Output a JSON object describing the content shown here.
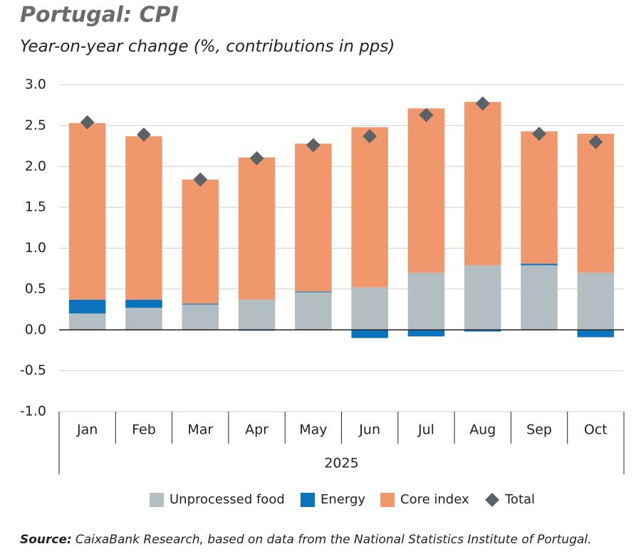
{
  "chart_data": {
    "type": "stacked_bar",
    "title": "Portugal: CPI",
    "subtitle": "Year-on-year change (%, contributions in pps)",
    "categories": [
      "Jan",
      "Feb",
      "Mar",
      "Apr",
      "May",
      "Jun",
      "Jul",
      "Aug",
      "Sep",
      "Oct"
    ],
    "x_group_label": "2025",
    "series": [
      {
        "name": "Unprocessed food",
        "color": "#b3bec2",
        "values": [
          0.2,
          0.27,
          0.31,
          0.37,
          0.46,
          0.52,
          0.7,
          0.79,
          0.79,
          0.7
        ]
      },
      {
        "name": "Energy",
        "color": "#0b72bd",
        "values": [
          0.17,
          0.1,
          0.01,
          -0.01,
          0.01,
          -0.1,
          -0.08,
          -0.02,
          0.02,
          -0.09
        ]
      },
      {
        "name": "Core index",
        "color": "#f1976c",
        "values": [
          2.16,
          2.0,
          1.52,
          1.74,
          1.81,
          1.96,
          2.01,
          2.0,
          1.62,
          1.7
        ]
      },
      {
        "name": "Total",
        "color": "#5b6267",
        "marker": "diamond",
        "values": [
          2.54,
          2.39,
          1.84,
          2.1,
          2.26,
          2.37,
          2.63,
          2.77,
          2.4,
          2.3
        ]
      }
    ],
    "ylim": [
      -1,
      3
    ],
    "yticks": [
      {
        "value": -1,
        "label": "-1.0"
      },
      -0.5,
      {
        "value": 0,
        "label": "0.0"
      },
      0.5,
      {
        "value": 1,
        "label": "1.0"
      },
      1.5,
      {
        "value": 2,
        "label": "2.0"
      },
      2.5,
      {
        "value": 3,
        "label": "3.0"
      }
    ],
    "grid": true,
    "legend": "bottom",
    "source_label": "Source:",
    "source": "CaixaBank Research, based on data from the National Statistics Institute of Portugal."
  }
}
